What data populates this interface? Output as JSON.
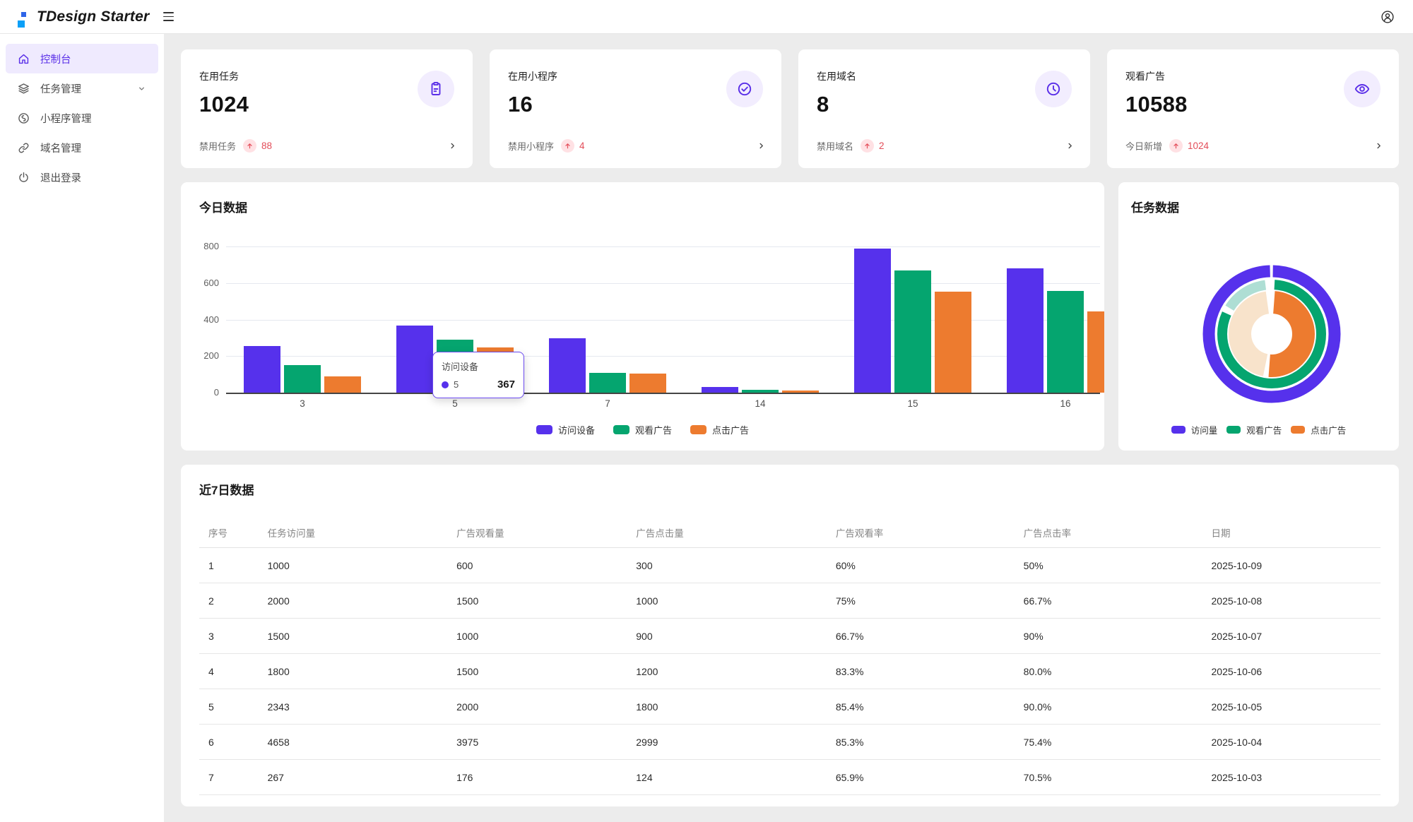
{
  "header": {
    "title": "TDesign Starter"
  },
  "sidebar": {
    "items": [
      {
        "label": "控制台",
        "icon": "home-icon",
        "active": true
      },
      {
        "label": "任务管理",
        "icon": "layers-icon",
        "has_submenu": true
      },
      {
        "label": "小程序管理",
        "icon": "miniprogram-icon"
      },
      {
        "label": "域名管理",
        "icon": "link-icon"
      },
      {
        "label": "退出登录",
        "icon": "power-icon"
      }
    ]
  },
  "stat_cards": [
    {
      "label": "在用任务",
      "value": "1024",
      "icon": "task-icon",
      "footer_label": "禁用任务",
      "footer_value": "88"
    },
    {
      "label": "在用小程序",
      "value": "16",
      "icon": "check-circle-icon",
      "footer_label": "禁用小程序",
      "footer_value": "4"
    },
    {
      "label": "在用域名",
      "value": "8",
      "icon": "clock-icon",
      "footer_label": "禁用域名",
      "footer_value": "2"
    },
    {
      "label": "观看广告",
      "value": "10588",
      "icon": "eye-icon",
      "footer_label": "今日新增",
      "footer_value": "1024"
    }
  ],
  "chart_data": [
    {
      "type": "bar",
      "title": "今日数据",
      "categories": [
        "3",
        "5",
        "7",
        "14",
        "15",
        "16"
      ],
      "series": [
        {
          "name": "访问设备",
          "color": "#5631EC",
          "values": [
            255,
            367,
            297,
            30,
            789,
            681
          ]
        },
        {
          "name": "观看广告",
          "color": "#05A56F",
          "values": [
            151,
            290,
            108,
            15,
            669,
            557
          ]
        },
        {
          "name": "点击广告",
          "color": "#ED7B2F",
          "values": [
            89,
            248,
            103,
            12,
            554,
            446
          ]
        }
      ],
      "xlabel": "",
      "ylabel": "",
      "ylim": [
        0,
        800
      ],
      "yticks": [
        0,
        200,
        400,
        600,
        800
      ],
      "grid": true,
      "legend_position": "bottom",
      "tooltip": {
        "series": "访问设备",
        "category": "5",
        "value": "367"
      }
    },
    {
      "type": "pie",
      "title": "任务数据",
      "legend": [
        {
          "label": "访问量",
          "color": "#5631EC"
        },
        {
          "label": "观看广告",
          "color": "#05A56F"
        },
        {
          "label": "点击广告",
          "color": "#ED7B2F"
        }
      ],
      "rings": [
        {
          "name": "访问量",
          "segments": [
            {
              "label": "访问量",
              "color": "#5631EC",
              "start": 0.3,
              "pct": 99.4
            }
          ]
        },
        {
          "name": "观看广告",
          "segments": [
            {
              "label": "观看广告",
              "color": "#05A56F",
              "start": 0.9,
              "pct": 81
            },
            {
              "label": "观看广告-浅",
              "color": "#AEDED4",
              "start": 83.9,
              "pct": 14.2
            }
          ]
        },
        {
          "name": "点击广告",
          "segments": [
            {
              "label": "点击广告",
              "color": "#ED7B2F",
              "start": 1.2,
              "pct": 50
            },
            {
              "label": "点击广告-浅",
              "color": "#F8E3CB",
              "start": 53.2,
              "pct": 44.6
            }
          ]
        }
      ],
      "legend_position": "bottom"
    }
  ],
  "table": {
    "title": "近7日数据",
    "columns": [
      "序号",
      "任务访问量",
      "广告观看量",
      "广告点击量",
      "广告观看率",
      "广告点击率",
      "日期"
    ],
    "rows": [
      [
        "1",
        "1000",
        "600",
        "300",
        "60%",
        "50%",
        "2025-10-09"
      ],
      [
        "2",
        "2000",
        "1500",
        "1000",
        "75%",
        "66.7%",
        "2025-10-08"
      ],
      [
        "3",
        "1500",
        "1000",
        "900",
        "66.7%",
        "90%",
        "2025-10-07"
      ],
      [
        "4",
        "1800",
        "1500",
        "1200",
        "83.3%",
        "80.0%",
        "2025-10-06"
      ],
      [
        "5",
        "2343",
        "2000",
        "1800",
        "85.4%",
        "90.0%",
        "2025-10-05"
      ],
      [
        "6",
        "4658",
        "3975",
        "2999",
        "85.3%",
        "75.4%",
        "2025-10-04"
      ],
      [
        "7",
        "267",
        "176",
        "124",
        "65.9%",
        "70.5%",
        "2025-10-03"
      ]
    ]
  },
  "colors": {
    "accent": "#5A2FE8",
    "chart_purple": "#5631EC",
    "chart_green": "#05A56F",
    "chart_orange": "#ED7B2F",
    "error_red": "#E34D59",
    "badge_pink_bg": "#FFE1E4",
    "icon_circle_bg": "#F2EDFE",
    "active_item_bg": "#EFEAFE"
  }
}
